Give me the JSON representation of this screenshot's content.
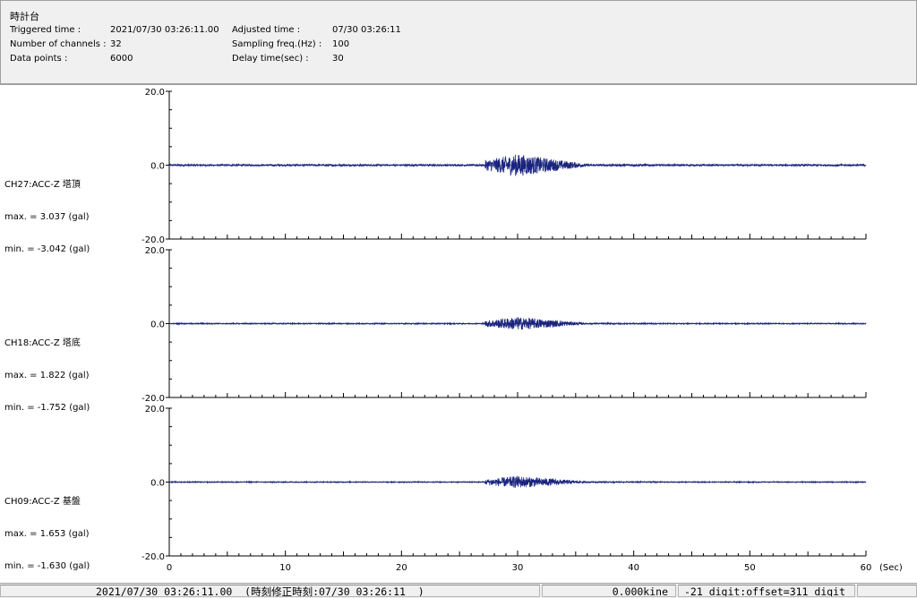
{
  "header": {
    "title": "時計台",
    "triggered_label": "Triggered time :",
    "triggered_value": "2021/07/30 03:26:11.00",
    "adjusted_label": "Adjusted time :",
    "adjusted_value": "07/30 03:26:11",
    "channels_label": "Number of channels :",
    "channels_value": "32",
    "sampling_label": "Sampling freq.(Hz) :",
    "sampling_value": "100",
    "datapoints_label": "Data points :",
    "datapoints_value": "6000",
    "delay_label": "Delay time(sec) :",
    "delay_value": "30"
  },
  "channels": [
    {
      "name": "CH27:ACC-Z 塔頂",
      "max": "max. = 3.037 (gal)",
      "min": "min. = -3.042 (gal)"
    },
    {
      "name": "CH18:ACC-Z 塔底",
      "max": "max. = 1.822 (gal)",
      "min": "min. = -1.752 (gal)"
    },
    {
      "name": "CH09:ACC-Z 基盤",
      "max": "max. = 1.653 (gal)",
      "min": "min. = -1.630 (gal)"
    }
  ],
  "status": {
    "time": "2021/07/30 03:26:11.00  (時刻修正時刻:07/30 03:26:11  )",
    "velocity": "0.000kine",
    "digit": "-21 digit:offset=311 digit"
  },
  "chart_data": {
    "type": "line",
    "xlabel": "(Sec)",
    "xlim": [
      0,
      60
    ],
    "ylim": [
      -20,
      20
    ],
    "x_ticks": [
      0,
      10,
      20,
      30,
      40,
      50,
      60
    ],
    "x_tick_labels": [
      "0",
      "10",
      "20",
      "30",
      "40",
      "50",
      "60"
    ],
    "y_tick_labels": [
      "20.0",
      "0.0",
      "-20.0"
    ],
    "line_color": "#1a237e",
    "sample_rate_hz": 100,
    "series": [
      {
        "name": "CH27:ACC-Z 塔頂",
        "max": 3.037,
        "min": -3.042
      },
      {
        "name": "CH18:ACC-Z 塔底",
        "max": 1.822,
        "min": -1.752
      },
      {
        "name": "CH09:ACC-Z 基盤",
        "max": 1.653,
        "min": -1.63
      }
    ]
  }
}
